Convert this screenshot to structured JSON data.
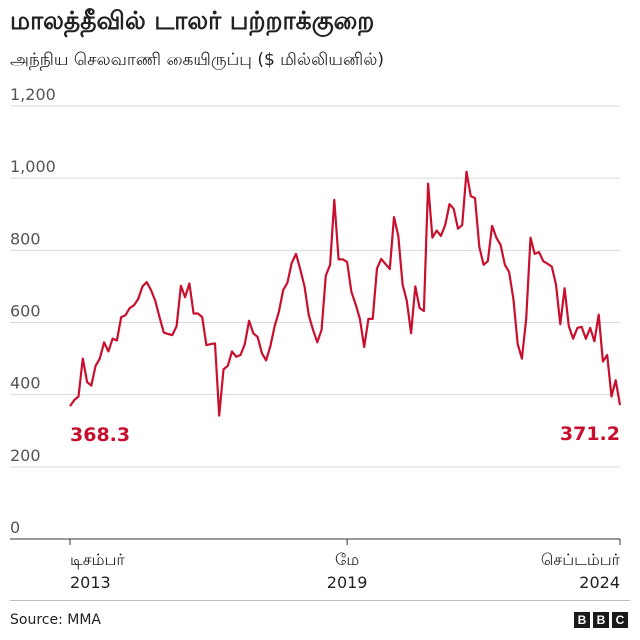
{
  "header": {
    "title": "மாலத்தீவில் டாலர் பற்றாக்குறை",
    "subtitle": "அந்நிய செலவாணி கையிருப்பு ($ மில்லியனில்)"
  },
  "footer": {
    "source": "Source: MMA",
    "logo_letters": [
      "B",
      "B",
      "C"
    ]
  },
  "colors": {
    "line": "#c8102e",
    "grid": "#d9d9d9",
    "axis": "#333333",
    "text": "#222222"
  },
  "chart_data": {
    "type": "line",
    "title": "மாலத்தீவில் டாலர் பற்றாக்குறை",
    "ylabel": "அந்நிய செலவாணி கையிருப்பு ($ மில்லியனில்)",
    "ylim": [
      0,
      1200
    ],
    "yticks": [
      0,
      200,
      400,
      600,
      800,
      1000,
      1200
    ],
    "ytick_labels": [
      "0",
      "200",
      "400",
      "600",
      "800",
      "1,000",
      "1,200"
    ],
    "xlim": [
      "2013-12",
      "2024-09"
    ],
    "xticks": [
      {
        "x": "2013-12",
        "line1": "டிசம்பர்",
        "line2": "2013",
        "align": "start"
      },
      {
        "x": "2019-05",
        "line1": "மே",
        "line2": "2019",
        "align": "middle"
      },
      {
        "x": "2024-09",
        "line1": "செப்டம்பர்",
        "line2": "2024",
        "align": "end"
      }
    ],
    "grid": true,
    "annotations": [
      {
        "label": "368.3",
        "x": "2013-12",
        "y": 368.3,
        "align": "start"
      },
      {
        "label": "371.2",
        "x": "2024-09",
        "y": 371.2,
        "align": "end"
      }
    ],
    "series": [
      {
        "x": [
          "2013-12",
          "2014-01",
          "2014-02",
          "2014-03",
          "2014-04",
          "2014-05",
          "2014-06",
          "2014-07",
          "2014-08",
          "2014-09",
          "2014-10",
          "2014-11",
          "2014-12",
          "2015-01",
          "2015-02",
          "2015-03",
          "2015-04",
          "2015-05",
          "2015-06",
          "2015-07",
          "2015-08",
          "2015-09",
          "2015-10",
          "2015-11",
          "2015-12",
          "2016-01",
          "2016-02",
          "2016-03",
          "2016-04",
          "2016-05",
          "2016-06",
          "2016-07",
          "2016-08",
          "2016-09",
          "2016-10",
          "2016-11",
          "2016-12",
          "2017-01",
          "2017-02",
          "2017-03",
          "2017-04",
          "2017-05",
          "2017-06",
          "2017-07",
          "2017-08",
          "2017-09",
          "2017-10",
          "2017-11",
          "2017-12",
          "2018-01",
          "2018-02",
          "2018-03",
          "2018-04",
          "2018-05",
          "2018-06",
          "2018-07",
          "2018-08",
          "2018-09",
          "2018-10",
          "2018-11",
          "2018-12",
          "2019-01",
          "2019-02",
          "2019-03",
          "2019-04",
          "2019-05",
          "2019-06",
          "2019-07",
          "2019-08",
          "2019-09",
          "2019-10",
          "2019-11",
          "2019-12",
          "2020-01",
          "2020-02",
          "2020-03",
          "2020-04",
          "2020-05",
          "2020-06",
          "2020-07",
          "2020-08",
          "2020-09",
          "2020-10",
          "2020-11",
          "2020-12",
          "2021-01",
          "2021-02",
          "2021-03",
          "2021-04",
          "2021-05",
          "2021-06",
          "2021-07",
          "2021-08",
          "2021-09",
          "2021-10",
          "2021-11",
          "2021-12",
          "2022-01",
          "2022-02",
          "2022-03",
          "2022-04",
          "2022-05",
          "2022-06",
          "2022-07",
          "2022-08",
          "2022-09",
          "2022-10",
          "2022-11",
          "2022-12",
          "2023-01",
          "2023-02",
          "2023-03",
          "2023-04",
          "2023-05",
          "2023-06",
          "2023-07",
          "2023-08",
          "2023-09",
          "2023-10",
          "2023-11",
          "2023-12",
          "2024-01",
          "2024-02",
          "2024-03",
          "2024-04",
          "2024-05",
          "2024-06",
          "2024-07",
          "2024-08",
          "2024-09"
        ],
        "y": [
          368.3,
          385,
          395,
          500,
          435,
          425,
          480,
          500,
          545,
          520,
          555,
          550,
          615,
          620,
          640,
          648,
          665,
          700,
          712,
          690,
          660,
          615,
          572,
          568,
          565,
          590,
          702,
          670,
          708,
          625,
          625,
          615,
          537,
          540,
          542,
          342,
          470,
          480,
          520,
          505,
          510,
          540,
          605,
          570,
          560,
          515,
          495,
          535,
          590,
          630,
          690,
          710,
          765,
          790,
          748,
          700,
          620,
          580,
          545,
          580,
          730,
          760,
          940,
          775,
          775,
          768,
          685,
          650,
          610,
          532,
          610,
          610,
          750,
          776,
          762,
          748,
          892,
          840,
          705,
          660,
          570,
          700,
          640,
          632,
          985,
          835,
          855,
          840,
          870,
          928,
          915,
          860,
          870,
          1018,
          950,
          945,
          810,
          760,
          770,
          868,
          835,
          815,
          760,
          740,
          665,
          540,
          500,
          610,
          835,
          790,
          795,
          770,
          763,
          755,
          705,
          595,
          695,
          590,
          555,
          585,
          588,
          555,
          585,
          548,
          622,
          492,
          510,
          395,
          440,
          371.2
        ]
      }
    ]
  }
}
